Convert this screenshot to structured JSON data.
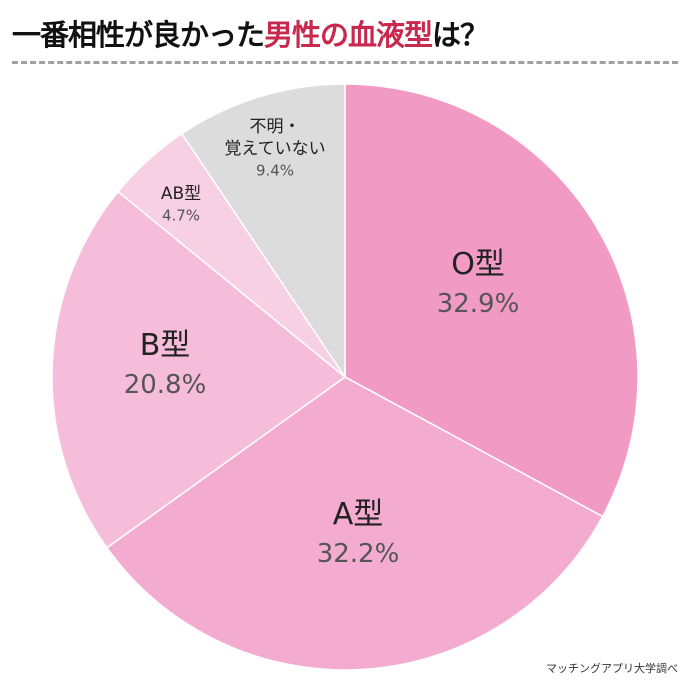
{
  "title": {
    "part1": "一番相性が良かった",
    "highlight": "男性の血液型",
    "part2": "は？"
  },
  "source": "マッチングアプリ大学調べ",
  "chart_data": {
    "type": "pie",
    "title": "一番相性が良かった男性の血液型は？",
    "start": "top",
    "direction": "clockwise",
    "slices": [
      {
        "label": "O型",
        "lines": [
          "O型"
        ],
        "value": 32.9,
        "value_label": "32.9%",
        "color": "#f19ac4"
      },
      {
        "label": "A型",
        "lines": [
          "A型"
        ],
        "value": 32.2,
        "value_label": "32.2%",
        "color": "#f4abd0"
      },
      {
        "label": "B型",
        "lines": [
          "B型"
        ],
        "value": 20.8,
        "value_label": "20.8%",
        "color": "#f5bdda"
      },
      {
        "label": "AB型",
        "lines": [
          "AB型"
        ],
        "value": 4.7,
        "value_label": "4.7%",
        "color": "#f8d0e4"
      },
      {
        "label": "不明・覚えていない",
        "lines": [
          "不明・",
          "覚えていない"
        ],
        "value": 9.4,
        "value_label": "9.4%",
        "color": "#dcdcdc"
      }
    ]
  }
}
